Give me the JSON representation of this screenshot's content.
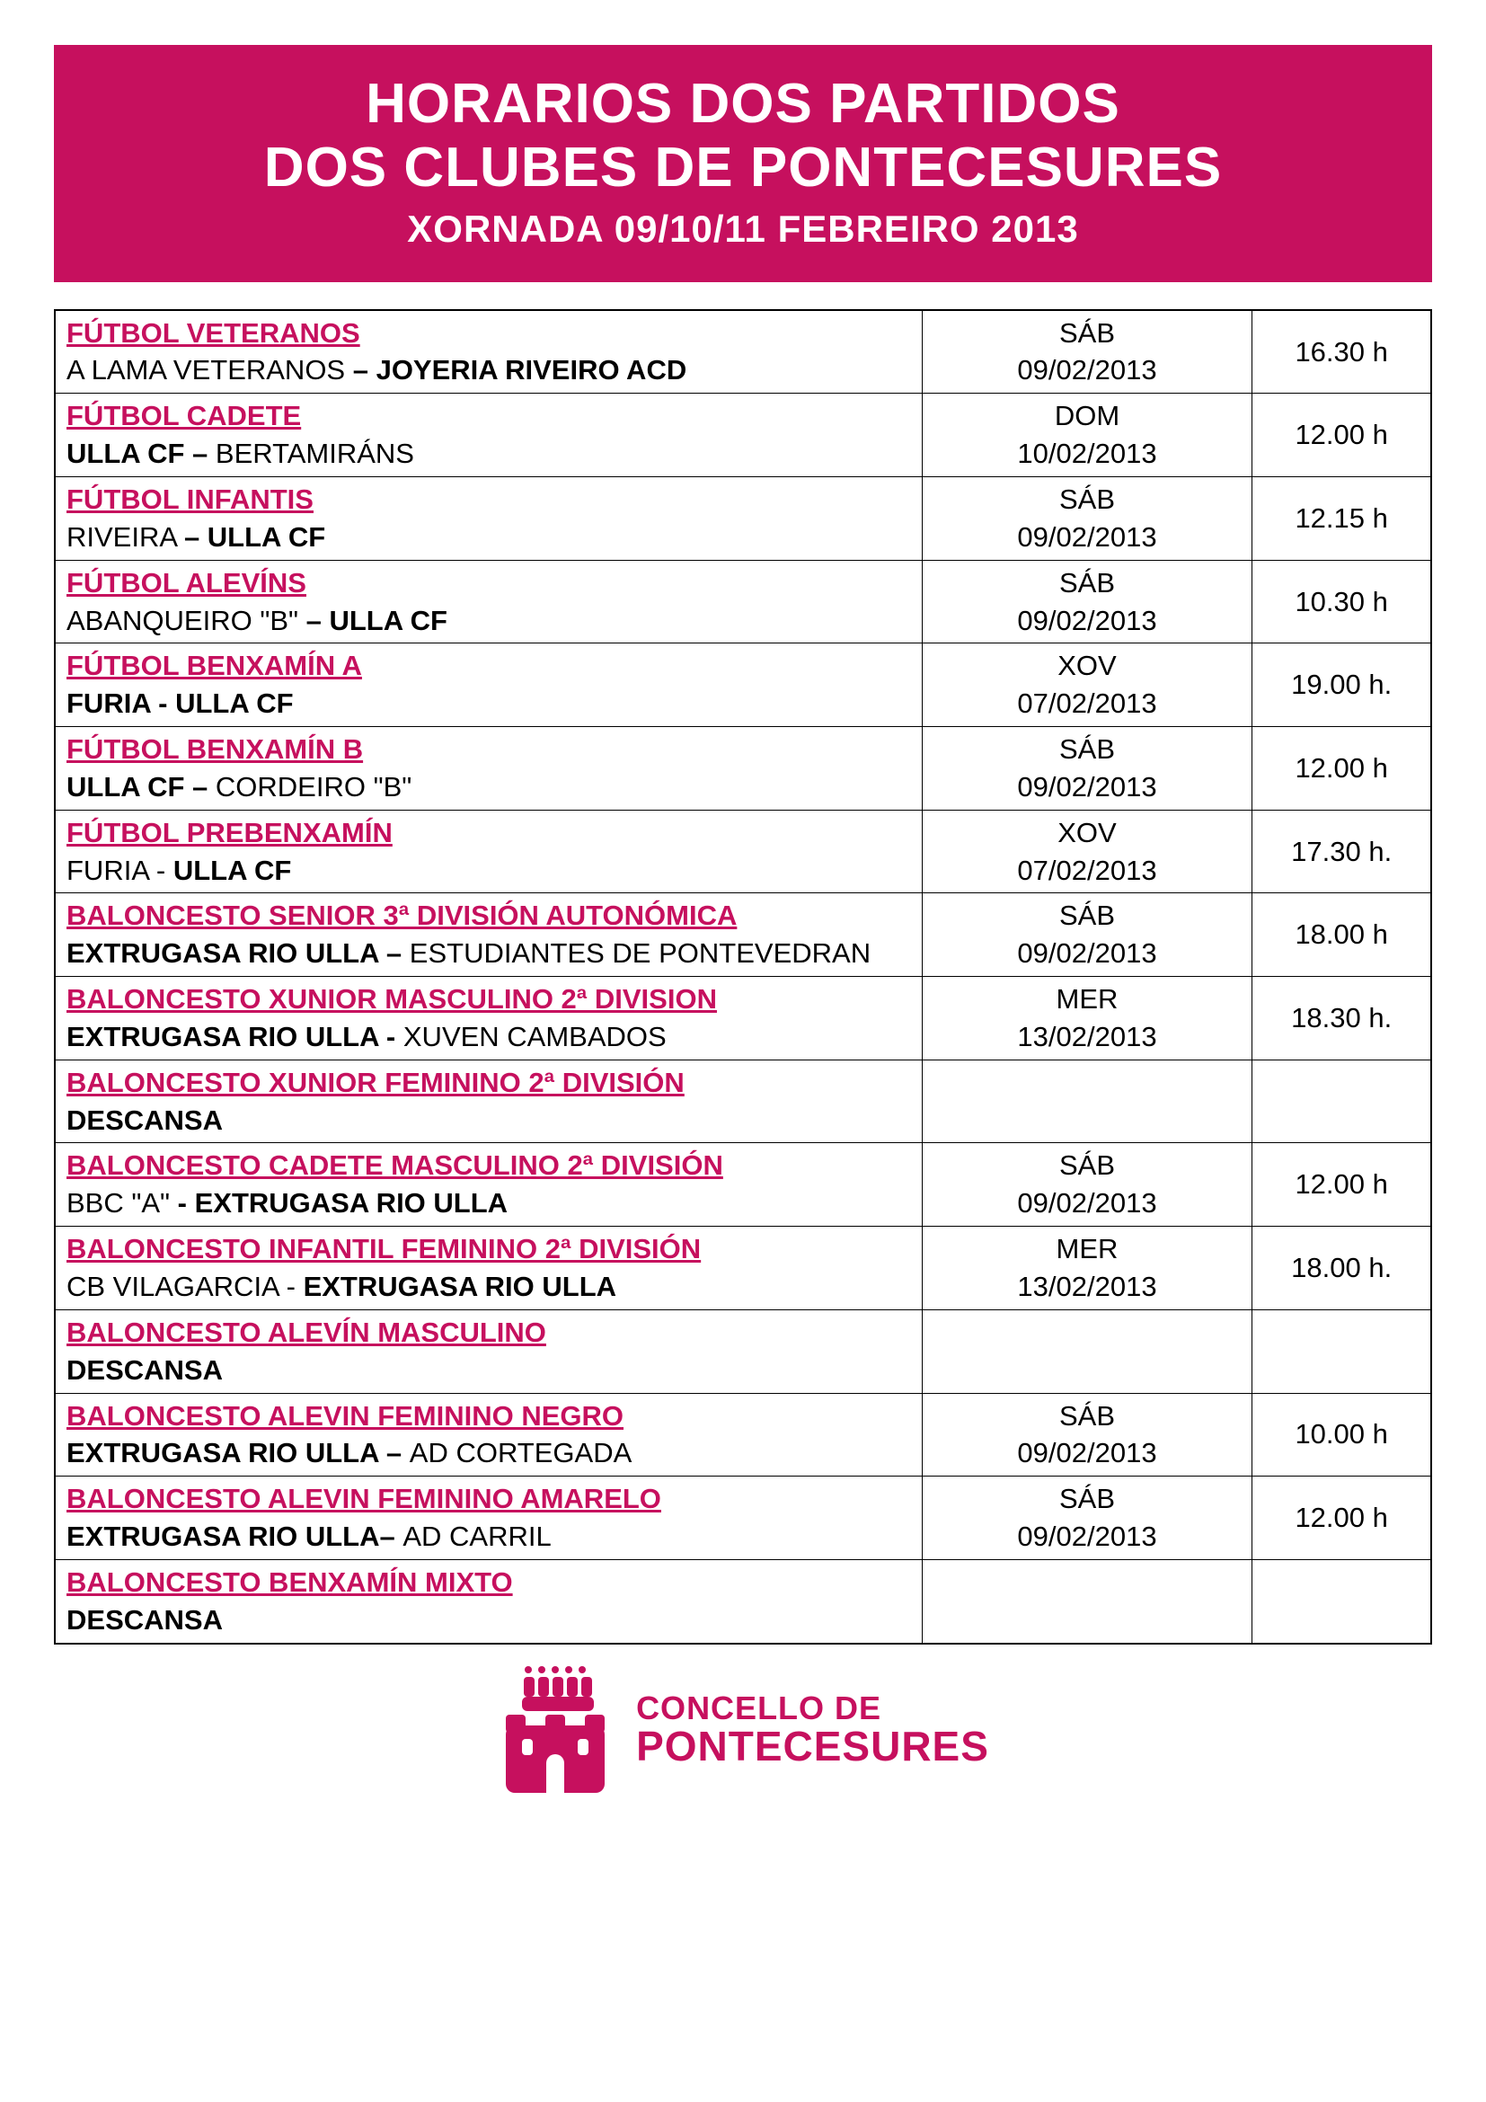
{
  "colors": {
    "brand": "#c6105e",
    "text": "#000000",
    "background": "#ffffff",
    "border": "#000000"
  },
  "header": {
    "title_line1": "HORARIOS DOS PARTIDOS",
    "title_line2": "DOS CLUBES DE PONTECESURES",
    "subtitle": "XORNADA 09/10/11 FEBREIRO 2013"
  },
  "schedule": [
    {
      "category": "FÚTBOL VETERANOS",
      "match_parts": [
        {
          "text": "A LAMA VETERANOS ",
          "bold": false
        },
        {
          "text": "– JOYERIA RIVEIRO ACD",
          "bold": true
        }
      ],
      "day": "SÁB",
      "date": "09/02/2013",
      "time": "16.30 h"
    },
    {
      "category": "FÚTBOL CADETE",
      "match_parts": [
        {
          "text": "ULLA CF – ",
          "bold": true
        },
        {
          "text": "BERTAMIRÁNS",
          "bold": false
        }
      ],
      "day": "DOM",
      "date": "10/02/2013",
      "time": "12.00 h"
    },
    {
      "category": "FÚTBOL INFANTIS",
      "match_parts": [
        {
          "text": "RIVEIRA ",
          "bold": false
        },
        {
          "text": "– ULLA CF",
          "bold": true
        }
      ],
      "day": "SÁB",
      "date": "09/02/2013",
      "time": "12.15 h"
    },
    {
      "category": "FÚTBOL ALEVÍNS",
      "match_parts": [
        {
          "text": "ABANQUEIRO \"B\" ",
          "bold": false
        },
        {
          "text": "– ULLA CF",
          "bold": true
        }
      ],
      "day": "SÁB",
      "date": "09/02/2013",
      "time": "10.30 h"
    },
    {
      "category": "FÚTBOL BENXAMÍN A",
      "match_parts": [
        {
          "text": "FURIA - ULLA CF",
          "bold": true
        }
      ],
      "day": "XOV",
      "date": "07/02/2013",
      "time": "19.00 h."
    },
    {
      "category": "FÚTBOL BENXAMÍN B",
      "match_parts": [
        {
          "text": "ULLA CF – ",
          "bold": true
        },
        {
          "text": "CORDEIRO \"B\"",
          "bold": false
        }
      ],
      "day": "SÁB",
      "date": "09/02/2013",
      "time": "12.00 h"
    },
    {
      "category": "FÚTBOL PREBENXAMÍN",
      "match_parts": [
        {
          "text": "FURIA - ",
          "bold": false
        },
        {
          "text": "ULLA CF",
          "bold": true
        }
      ],
      "day": "XOV",
      "date": "07/02/2013",
      "time": "17.30 h."
    },
    {
      "category": "BALONCESTO SENIOR 3ª DIVISIÓN AUTONÓMICA",
      "match_parts": [
        {
          "text": "EXTRUGASA RIO ULLA – ",
          "bold": true
        },
        {
          "text": "ESTUDIANTES DE PONTEVEDRAN",
          "bold": false
        }
      ],
      "day": "SÁB",
      "date": "09/02/2013",
      "time": "18.00 h"
    },
    {
      "category": "BALONCESTO XUNIOR MASCULINO 2ª DIVISION",
      "match_parts": [
        {
          "text": "EXTRUGASA RIO ULLA - ",
          "bold": true
        },
        {
          "text": "XUVEN CAMBADOS",
          "bold": false
        }
      ],
      "day": "MER",
      "date": "13/02/2013",
      "time": "18.30 h."
    },
    {
      "category": "BALONCESTO XUNIOR FEMININO 2ª DIVISIÓN",
      "match_parts": [
        {
          "text": "DESCANSA",
          "bold": true
        }
      ],
      "day": "",
      "date": "",
      "time": ""
    },
    {
      "category": "BALONCESTO CADETE MASCULINO 2ª DIVISIÓN",
      "match_parts": [
        {
          "text": "BBC \"A\" ",
          "bold": false
        },
        {
          "text": "- EXTRUGASA RIO ULLA",
          "bold": true
        }
      ],
      "day": "SÁB",
      "date": "09/02/2013",
      "time": "12.00 h"
    },
    {
      "category": "BALONCESTO INFANTIL FEMININO 2ª DIVISIÓN",
      "match_parts": [
        {
          "text": "CB VILAGARCIA - ",
          "bold": false
        },
        {
          "text": "EXTRUGASA RIO ULLA",
          "bold": true
        }
      ],
      "day": "MER",
      "date": "13/02/2013",
      "time": "18.00 h."
    },
    {
      "category": "BALONCESTO ALEVÍN MASCULINO",
      "match_parts": [
        {
          "text": "DESCANSA",
          "bold": true
        }
      ],
      "day": "",
      "date": "",
      "time": ""
    },
    {
      "category": "BALONCESTO ALEVIN FEMININO NEGRO",
      "match_parts": [
        {
          "text": "EXTRUGASA RIO ULLA – ",
          "bold": true
        },
        {
          "text": "AD CORTEGADA",
          "bold": false
        }
      ],
      "day": "SÁB",
      "date": "09/02/2013",
      "time": "10.00 h"
    },
    {
      "category": "BALONCESTO ALEVIN FEMININO AMARELO",
      "match_parts": [
        {
          "text": "EXTRUGASA RIO ULLA– ",
          "bold": true
        },
        {
          "text": "AD CARRIL",
          "bold": false
        }
      ],
      "day": "SÁB",
      "date": "09/02/2013",
      "time": "12.00 h"
    },
    {
      "category": "BALONCESTO BENXAMÍN MIXTO",
      "match_parts": [
        {
          "text": "DESCANSA",
          "bold": true
        }
      ],
      "day": "",
      "date": "",
      "time": ""
    }
  ],
  "footer": {
    "line1": "CONCELLO DE",
    "line2": "PONTECESURES",
    "logo_name": "castle-crown-icon"
  }
}
